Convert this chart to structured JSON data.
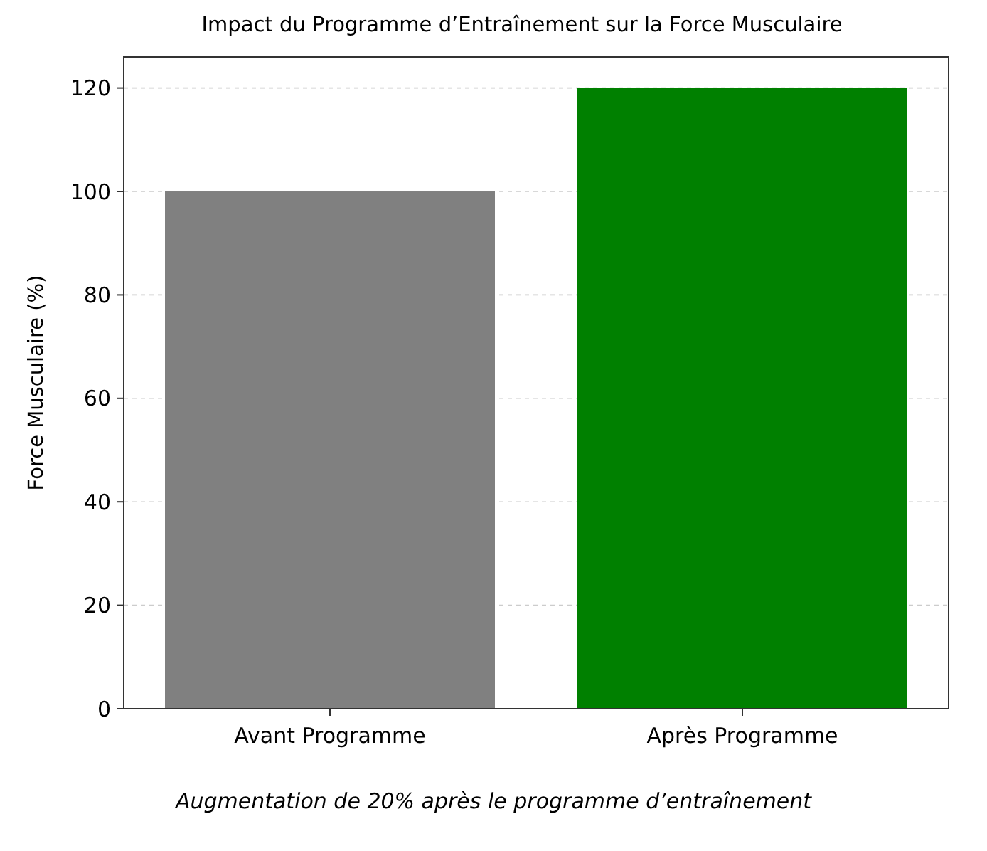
{
  "chart_data": {
    "type": "bar",
    "title": "Impact du Programme d’Entraînement sur la Force Musculaire",
    "ylabel": "Force Musculaire (%)",
    "categories": [
      "Avant Programme",
      "Après Programme"
    ],
    "values": [
      100,
      120
    ],
    "colors": [
      "#808080",
      "#008000"
    ],
    "ylim": [
      0,
      126
    ],
    "yticks": [
      0,
      20,
      40,
      60,
      80,
      100,
      120
    ],
    "grid": "y",
    "annotations": [
      "Augmentation de 20% après le programme d’entraînement"
    ]
  }
}
